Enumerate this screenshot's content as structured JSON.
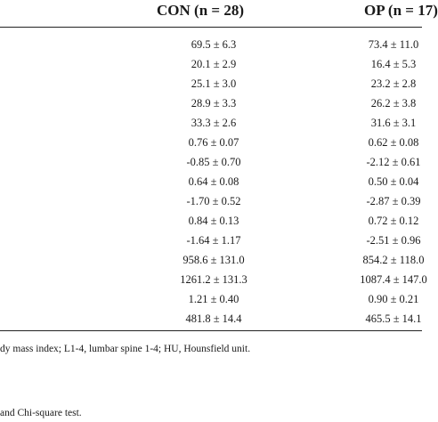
{
  "table": {
    "headers": {
      "con": "CON (n = 28)",
      "op": "OP (n = 17)"
    },
    "rows": [
      {
        "con": "69.5 ± 6.3",
        "op": "73.4 ± 11.0"
      },
      {
        "con": "20.1 ± 2.9",
        "op": "16.4 ± 5.3"
      },
      {
        "con": "25.1 ± 3.0",
        "op": "23.2 ± 2.8"
      },
      {
        "con": "28.9 ± 3.3",
        "op": "26.2 ± 3.8"
      },
      {
        "con": "33.3 ± 2.6",
        "op": "31.6 ± 3.1"
      },
      {
        "con": "0.76 ± 0.07",
        "op": "0.62 ± 0.08"
      },
      {
        "con": "-0.85 ± 0.70",
        "op": "-2.12 ± 0.61"
      },
      {
        "con": "0.64 ± 0.08",
        "op": "0.50 ± 0.04"
      },
      {
        "con": "-1.70 ± 0.52",
        "op": "-2.87 ± 0.39"
      },
      {
        "con": "0.84 ± 0.13",
        "op": "0.72 ± 0.12"
      },
      {
        "con": "-1.64 ± 1.17",
        "op": "-2.51 ± 0.96"
      },
      {
        "con": "958.6 ± 131.0",
        "op": "854.2 ± 118.0"
      },
      {
        "con": "1261.2 ± 131.3",
        "op": "1087.4 ± 147.0"
      },
      {
        "con": "1.21 ± 0.40",
        "op": "0.90 ± 0.21"
      },
      {
        "con": "481.8 ± 14.4",
        "op": "465.5 ± 14.1"
      }
    ]
  },
  "footnotes": {
    "abbreviations": "dy mass index; L1-4, lumbar spine 1-4; HU, Hounsfield unit.",
    "tests": "and Chi-square test."
  }
}
